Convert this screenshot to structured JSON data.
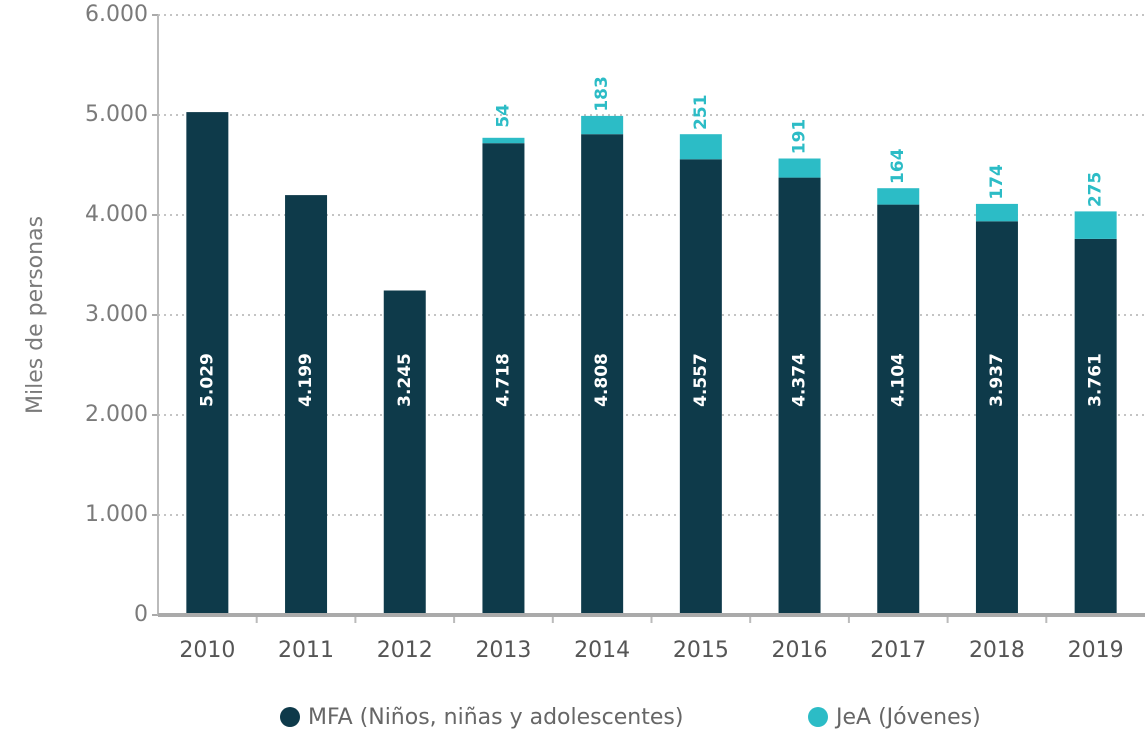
{
  "chart_data": {
    "type": "stacked_bar",
    "y_label": "Miles de personas",
    "categories": [
      "2010",
      "2011",
      "2012",
      "2013",
      "2014",
      "2015",
      "2016",
      "2017",
      "2018",
      "2019"
    ],
    "series": [
      {
        "name": "MFA (Niños, niñas y adolescentes)",
        "color": "#0e3a4a",
        "values": [
          5029,
          4199,
          3245,
          4718,
          4808,
          4557,
          4374,
          4104,
          3937,
          3761
        ],
        "value_labels": [
          "5.029",
          "4.199",
          "3.245",
          "4.718",
          "4.808",
          "4.557",
          "4.374",
          "4.104",
          "3.937",
          "3.761"
        ]
      },
      {
        "name": "JeA (Jóvenes)",
        "color": "#2cbcc6",
        "values": [
          null,
          null,
          null,
          54,
          183,
          251,
          191,
          164,
          174,
          275
        ]
      }
    ],
    "ylim": [
      0,
      6000
    ],
    "yticks": [
      0,
      {
        "value": 1000,
        "label": "1.000"
      },
      {
        "value": 2000,
        "label": "2.000"
      },
      {
        "value": 3000,
        "label": "3.000"
      },
      {
        "value": 4000,
        "label": "4.000"
      },
      {
        "value": 5000,
        "label": "5.000"
      },
      {
        "value": 6000,
        "label": "6.000"
      }
    ],
    "grid": true
  }
}
